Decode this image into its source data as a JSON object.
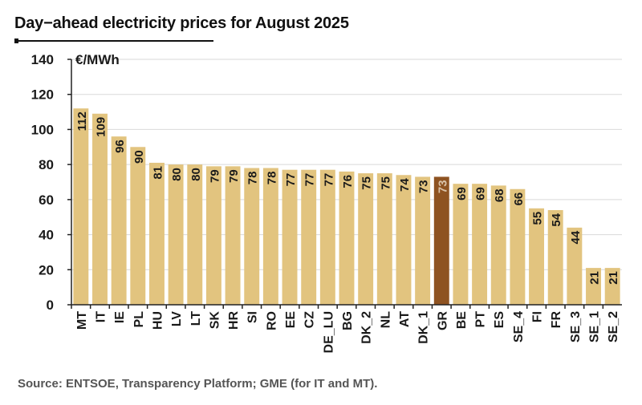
{
  "title": "Day−ahead electricity prices for August 2025",
  "source": "Source: ENTSOE, Transparency Platform; GME (for IT and MT).",
  "colors": {
    "bar": "#e2c47f",
    "highlight": "#8e5321",
    "grid": "#d9d9d9",
    "axis": "#222222",
    "text": "#1a1a1a",
    "highlight_label": "#d9c2a8"
  },
  "chart_data": {
    "type": "bar",
    "title": "Day−ahead electricity prices for August 2025",
    "ylabel": "€/MWh",
    "xlabel": "",
    "ylim": [
      0,
      140
    ],
    "yticks": [
      0,
      20,
      40,
      60,
      80,
      100,
      120,
      140
    ],
    "grid": true,
    "highlight": "GR",
    "categories": [
      "MT",
      "IT",
      "IE",
      "PL",
      "HU",
      "LV",
      "LT",
      "SK",
      "HR",
      "SI",
      "RO",
      "EE",
      "CZ",
      "DE_LU",
      "BG",
      "DK_2",
      "NL",
      "AT",
      "DK_1",
      "GR",
      "BE",
      "PT",
      "ES",
      "SE_4",
      "FI",
      "FR",
      "SE_3",
      "SE_1",
      "SE_2"
    ],
    "values": [
      112,
      109,
      96,
      90,
      81,
      80,
      80,
      79,
      79,
      78,
      78,
      77,
      77,
      77,
      76,
      75,
      75,
      74,
      73,
      73,
      69,
      69,
      68,
      66,
      55,
      54,
      44,
      21,
      21
    ],
    "value_labels": [
      "112",
      "109",
      "96",
      "90",
      "81",
      "80",
      "80",
      "79",
      "79",
      "78",
      "78",
      "77",
      "77",
      "77",
      "76",
      "75",
      "75",
      "74",
      "73",
      "73",
      "69",
      "69",
      "68",
      "66",
      "55",
      "54",
      "44",
      "21",
      "21"
    ]
  }
}
